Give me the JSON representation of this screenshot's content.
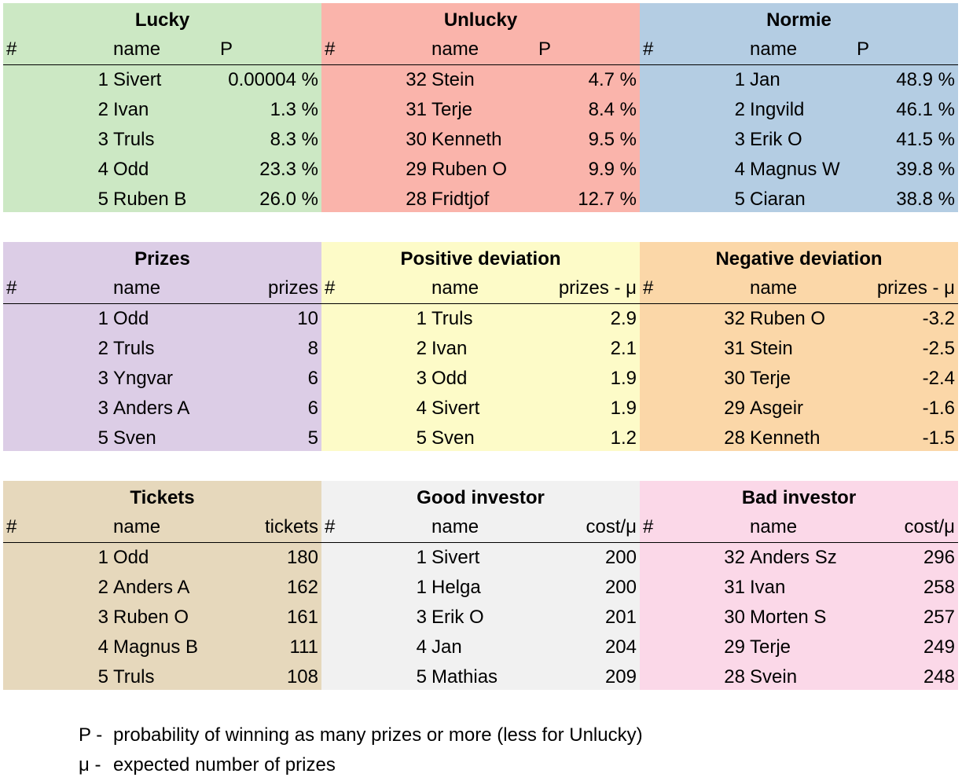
{
  "tables": [
    {
      "title": "Lucky",
      "color": "#cce8c4",
      "headers": {
        "rank": "#",
        "name": "name",
        "value": "P"
      },
      "rows": [
        {
          "rank": "1",
          "name": "Sivert",
          "value": "0.00004 %"
        },
        {
          "rank": "2",
          "name": "Ivan",
          "value": "1.3 %"
        },
        {
          "rank": "3",
          "name": "Truls",
          "value": "8.3 %"
        },
        {
          "rank": "4",
          "name": "Odd",
          "value": "23.3 %"
        },
        {
          "rank": "5",
          "name": "Ruben B",
          "value": "26.0 %"
        }
      ]
    },
    {
      "title": "Unlucky",
      "color": "#fab4ab",
      "headers": {
        "rank": "#",
        "name": "name",
        "value": "P"
      },
      "rows": [
        {
          "rank": "32",
          "name": "Stein",
          "value": "4.7 %"
        },
        {
          "rank": "31",
          "name": "Terje",
          "value": "8.4 %"
        },
        {
          "rank": "30",
          "name": "Kenneth",
          "value": "9.5 %"
        },
        {
          "rank": "29",
          "name": "Ruben O",
          "value": "9.9 %"
        },
        {
          "rank": "28",
          "name": "Fridtjof",
          "value": "12.7 %"
        }
      ]
    },
    {
      "title": "Normie",
      "color": "#b4cde3",
      "headers": {
        "rank": "#",
        "name": "name",
        "value": "P"
      },
      "rows": [
        {
          "rank": "1",
          "name": "Jan",
          "value": "48.9 %"
        },
        {
          "rank": "2",
          "name": "Ingvild",
          "value": "46.1 %"
        },
        {
          "rank": "3",
          "name": "Erik O",
          "value": "41.5 %"
        },
        {
          "rank": "4",
          "name": "Magnus W",
          "value": "39.8 %"
        },
        {
          "rank": "5",
          "name": "Ciaran",
          "value": "38.8 %"
        }
      ]
    },
    {
      "title": "Prizes",
      "color": "#dccde6",
      "headers": {
        "rank": "#",
        "name": "name",
        "value": "prizes"
      },
      "rows": [
        {
          "rank": "1",
          "name": "Odd",
          "value": "10"
        },
        {
          "rank": "2",
          "name": "Truls",
          "value": "8"
        },
        {
          "rank": "3",
          "name": "Yngvar",
          "value": "6"
        },
        {
          "rank": "3",
          "name": "Anders A",
          "value": "6"
        },
        {
          "rank": "5",
          "name": "Sven",
          "value": "5"
        }
      ]
    },
    {
      "title": "Positive deviation",
      "color": "#fdfbc8",
      "headers": {
        "rank": "#",
        "name": "name",
        "value": "prizes - μ"
      },
      "rows": [
        {
          "rank": "1",
          "name": "Truls",
          "value": "2.9"
        },
        {
          "rank": "2",
          "name": "Ivan",
          "value": "2.1"
        },
        {
          "rank": "3",
          "name": "Odd",
          "value": "1.9"
        },
        {
          "rank": "4",
          "name": "Sivert",
          "value": "1.9"
        },
        {
          "rank": "5",
          "name": "Sven",
          "value": "1.2"
        }
      ]
    },
    {
      "title": "Negative deviation",
      "color": "#fbd7a8",
      "headers": {
        "rank": "#",
        "name": "name",
        "value": "prizes - μ"
      },
      "rows": [
        {
          "rank": "32",
          "name": "Ruben O",
          "value": "-3.2"
        },
        {
          "rank": "31",
          "name": "Stein",
          "value": "-2.5"
        },
        {
          "rank": "30",
          "name": "Terje",
          "value": "-2.4"
        },
        {
          "rank": "29",
          "name": "Asgeir",
          "value": "-1.6"
        },
        {
          "rank": "28",
          "name": "Kenneth",
          "value": "-1.5"
        }
      ]
    },
    {
      "title": "Tickets",
      "color": "#e6d8bc",
      "headers": {
        "rank": "#",
        "name": "name",
        "value": "tickets"
      },
      "rows": [
        {
          "rank": "1",
          "name": "Odd",
          "value": "180"
        },
        {
          "rank": "2",
          "name": "Anders A",
          "value": "162"
        },
        {
          "rank": "3",
          "name": "Ruben O",
          "value": "161"
        },
        {
          "rank": "4",
          "name": "Magnus B",
          "value": "111"
        },
        {
          "rank": "5",
          "name": "Truls",
          "value": "108"
        }
      ]
    },
    {
      "title": "Good investor",
      "color": "#f1f1f1",
      "headers": {
        "rank": "#",
        "name": "name",
        "value": "cost/μ"
      },
      "rows": [
        {
          "rank": "1",
          "name": "Sivert",
          "value": "200"
        },
        {
          "rank": "1",
          "name": "Helga",
          "value": "200"
        },
        {
          "rank": "3",
          "name": "Erik O",
          "value": "201"
        },
        {
          "rank": "4",
          "name": "Jan",
          "value": "204"
        },
        {
          "rank": "5",
          "name": "Mathias",
          "value": "209"
        }
      ]
    },
    {
      "title": "Bad investor",
      "color": "#fbd8e8",
      "headers": {
        "rank": "#",
        "name": "name",
        "value": "cost/μ"
      },
      "rows": [
        {
          "rank": "32",
          "name": "Anders Sz",
          "value": "296"
        },
        {
          "rank": "31",
          "name": "Ivan",
          "value": "258"
        },
        {
          "rank": "30",
          "name": "Morten S",
          "value": "257"
        },
        {
          "rank": "29",
          "name": "Terje",
          "value": "249"
        },
        {
          "rank": "28",
          "name": "Svein",
          "value": "248"
        }
      ]
    }
  ],
  "footnotes": [
    {
      "symbol": "P -",
      "text": "probability of winning as many prizes or more (less for Unlucky)"
    },
    {
      "symbol": "μ -",
      "text": "expected number of prizes"
    }
  ]
}
